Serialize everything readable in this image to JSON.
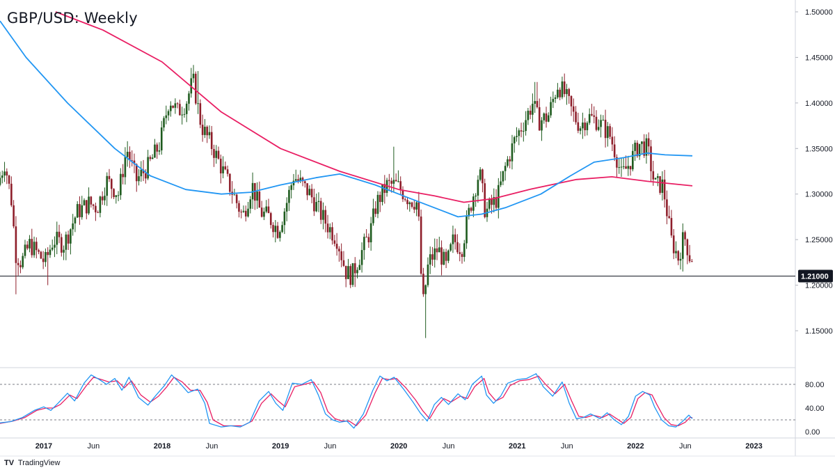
{
  "chart_data": {
    "type": "candlestick",
    "title": "GBP/USD: Weekly",
    "price_axis": {
      "ticks": [
        "1.15000",
        "1.20000",
        "1.25000",
        "1.30000",
        "1.35000",
        "1.40000",
        "1.45000",
        "1.50000"
      ],
      "range": [
        1.125,
        1.505
      ]
    },
    "time_axis": {
      "labels": [
        "2017",
        "Jun",
        "2018",
        "Jun",
        "2019",
        "Jun",
        "2020",
        "Jun",
        "2021",
        "Jun",
        "2022",
        "Jun",
        "2023"
      ],
      "label_dates": [
        2017.0,
        2017.42,
        2018.0,
        2018.42,
        2019.0,
        2019.42,
        2020.0,
        2020.42,
        2021.0,
        2021.42,
        2022.0,
        2022.42,
        2023.0
      ],
      "range": [
        2016.63,
        2023.35
      ]
    },
    "horizontal_line": {
      "value": 1.21,
      "label": "1.21000",
      "color": "#131722"
    },
    "candles": {
      "up_color": "#1e5b1e",
      "down_color": "#8e1e2a",
      "price_path": [
        [
          2016.63,
          1.31
        ],
        [
          2016.69,
          1.335
        ],
        [
          2016.75,
          1.29
        ],
        [
          2016.78,
          1.235
        ],
        [
          2016.83,
          1.225
        ],
        [
          2016.9,
          1.245
        ],
        [
          2017.03,
          1.225
        ],
        [
          2017.1,
          1.25
        ],
        [
          2017.19,
          1.245
        ],
        [
          2017.3,
          1.28
        ],
        [
          2017.4,
          1.29
        ],
        [
          2017.47,
          1.285
        ],
        [
          2017.55,
          1.315
        ],
        [
          2017.65,
          1.3
        ],
        [
          2017.72,
          1.35
        ],
        [
          2017.8,
          1.315
        ],
        [
          2017.9,
          1.33
        ],
        [
          2018.0,
          1.355
        ],
        [
          2018.08,
          1.405
        ],
        [
          2018.15,
          1.39
        ],
        [
          2018.22,
          1.4
        ],
        [
          2018.28,
          1.425
        ],
        [
          2018.35,
          1.375
        ],
        [
          2018.45,
          1.35
        ],
        [
          2018.55,
          1.32
        ],
        [
          2018.62,
          1.3
        ],
        [
          2018.7,
          1.275
        ],
        [
          2018.78,
          1.31
        ],
        [
          2018.85,
          1.28
        ],
        [
          2018.92,
          1.275
        ],
        [
          2019.0,
          1.26
        ],
        [
          2019.07,
          1.29
        ],
        [
          2019.13,
          1.32
        ],
        [
          2019.2,
          1.31
        ],
        [
          2019.27,
          1.3
        ],
        [
          2019.35,
          1.28
        ],
        [
          2019.42,
          1.265
        ],
        [
          2019.5,
          1.25
        ],
        [
          2019.57,
          1.215
        ],
        [
          2019.62,
          1.21
        ],
        [
          2019.7,
          1.235
        ],
        [
          2019.78,
          1.26
        ],
        [
          2019.83,
          1.29
        ],
        [
          2019.92,
          1.31
        ],
        [
          2020.0,
          1.31
        ],
        [
          2020.1,
          1.295
        ],
        [
          2020.18,
          1.29
        ],
        [
          2020.22,
          1.175
        ],
        [
          2020.27,
          1.225
        ],
        [
          2020.35,
          1.24
        ],
        [
          2020.42,
          1.22
        ],
        [
          2020.48,
          1.25
        ],
        [
          2020.55,
          1.24
        ],
        [
          2020.62,
          1.285
        ],
        [
          2020.7,
          1.325
        ],
        [
          2020.75,
          1.28
        ],
        [
          2020.85,
          1.295
        ],
        [
          2020.92,
          1.33
        ],
        [
          2021.0,
          1.36
        ],
        [
          2021.08,
          1.38
        ],
        [
          2021.15,
          1.4
        ],
        [
          2021.2,
          1.38
        ],
        [
          2021.28,
          1.385
        ],
        [
          2021.36,
          1.42
        ],
        [
          2021.42,
          1.41
        ],
        [
          2021.5,
          1.385
        ],
        [
          2021.55,
          1.375
        ],
        [
          2021.62,
          1.385
        ],
        [
          2021.7,
          1.38
        ],
        [
          2021.8,
          1.365
        ],
        [
          2021.85,
          1.345
        ],
        [
          2021.9,
          1.32
        ],
        [
          2021.95,
          1.33
        ],
        [
          2022.05,
          1.355
        ],
        [
          2022.12,
          1.35
        ],
        [
          2022.18,
          1.31
        ],
        [
          2022.25,
          1.31
        ],
        [
          2022.32,
          1.25
        ],
        [
          2022.38,
          1.23
        ],
        [
          2022.43,
          1.255
        ],
        [
          2022.48,
          1.23
        ]
      ],
      "extreme_wicks": [
        {
          "date": 2016.76,
          "low": 1.19
        },
        {
          "date": 2017.03,
          "low": 1.2
        },
        {
          "date": 2018.3,
          "high": 1.435
        },
        {
          "date": 2019.62,
          "low": 1.198
        },
        {
          "date": 2019.96,
          "high": 1.352
        },
        {
          "date": 2020.22,
          "low": 1.142
        },
        {
          "date": 2021.16,
          "high": 1.423
        },
        {
          "date": 2021.38,
          "high": 1.425
        },
        {
          "date": 2022.4,
          "low": 1.215
        }
      ]
    },
    "moving_averages": [
      {
        "color": "#e91e63",
        "points": [
          [
            2017.1,
            1.5
          ],
          [
            2017.5,
            1.48
          ],
          [
            2018.0,
            1.445
          ],
          [
            2018.5,
            1.39
          ],
          [
            2019.0,
            1.35
          ],
          [
            2019.5,
            1.325
          ],
          [
            2020.0,
            1.305
          ],
          [
            2020.3,
            1.298
          ],
          [
            2020.55,
            1.291
          ],
          [
            2020.8,
            1.295
          ],
          [
            2021.1,
            1.305
          ],
          [
            2021.5,
            1.316
          ],
          [
            2021.8,
            1.319
          ],
          [
            2022.1,
            1.314
          ],
          [
            2022.48,
            1.309
          ]
        ]
      },
      {
        "color": "#2196f3",
        "points": [
          [
            2016.63,
            1.49
          ],
          [
            2016.85,
            1.45
          ],
          [
            2017.2,
            1.4
          ],
          [
            2017.6,
            1.35
          ],
          [
            2017.9,
            1.32
          ],
          [
            2018.2,
            1.305
          ],
          [
            2018.5,
            1.3
          ],
          [
            2018.75,
            1.302
          ],
          [
            2019.0,
            1.31
          ],
          [
            2019.3,
            1.318
          ],
          [
            2019.5,
            1.322
          ],
          [
            2019.8,
            1.31
          ],
          [
            2020.1,
            1.295
          ],
          [
            2020.3,
            1.285
          ],
          [
            2020.5,
            1.275
          ],
          [
            2020.7,
            1.278
          ],
          [
            2020.9,
            1.285
          ],
          [
            2021.2,
            1.3
          ],
          [
            2021.45,
            1.32
          ],
          [
            2021.65,
            1.335
          ],
          [
            2021.9,
            1.34
          ],
          [
            2022.1,
            1.345
          ],
          [
            2022.25,
            1.343
          ],
          [
            2022.48,
            1.342
          ]
        ]
      }
    ],
    "oscillator": {
      "ticks": [
        "0.00",
        "40.00",
        "80.00"
      ],
      "range": [
        -5,
        105
      ],
      "levels": [
        20,
        80
      ],
      "k_color": "#2196f3",
      "d_color": "#e91e63",
      "k_points": [
        [
          2016.63,
          15
        ],
        [
          2016.72,
          17
        ],
        [
          2016.82,
          24
        ],
        [
          2016.92,
          36
        ],
        [
          2017.0,
          42
        ],
        [
          2017.06,
          36
        ],
        [
          2017.12,
          48
        ],
        [
          2017.2,
          65
        ],
        [
          2017.26,
          52
        ],
        [
          2017.34,
          82
        ],
        [
          2017.4,
          96
        ],
        [
          2017.47,
          88
        ],
        [
          2017.53,
          80
        ],
        [
          2017.6,
          90
        ],
        [
          2017.66,
          70
        ],
        [
          2017.72,
          92
        ],
        [
          2017.8,
          58
        ],
        [
          2017.88,
          45
        ],
        [
          2017.95,
          62
        ],
        [
          2018.02,
          78
        ],
        [
          2018.08,
          96
        ],
        [
          2018.15,
          82
        ],
        [
          2018.22,
          66
        ],
        [
          2018.3,
          72
        ],
        [
          2018.36,
          48
        ],
        [
          2018.4,
          14
        ],
        [
          2018.5,
          8
        ],
        [
          2018.58,
          10
        ],
        [
          2018.66,
          8
        ],
        [
          2018.74,
          16
        ],
        [
          2018.82,
          52
        ],
        [
          2018.9,
          68
        ],
        [
          2018.96,
          48
        ],
        [
          2019.02,
          36
        ],
        [
          2019.1,
          82
        ],
        [
          2019.18,
          80
        ],
        [
          2019.26,
          88
        ],
        [
          2019.32,
          62
        ],
        [
          2019.38,
          30
        ],
        [
          2019.44,
          20
        ],
        [
          2019.5,
          16
        ],
        [
          2019.56,
          18
        ],
        [
          2019.62,
          6
        ],
        [
          2019.7,
          30
        ],
        [
          2019.78,
          70
        ],
        [
          2019.84,
          94
        ],
        [
          2019.9,
          86
        ],
        [
          2019.96,
          92
        ],
        [
          2020.04,
          72
        ],
        [
          2020.12,
          50
        ],
        [
          2020.18,
          32
        ],
        [
          2020.24,
          18
        ],
        [
          2020.3,
          46
        ],
        [
          2020.36,
          58
        ],
        [
          2020.42,
          46
        ],
        [
          2020.5,
          64
        ],
        [
          2020.56,
          54
        ],
        [
          2020.62,
          80
        ],
        [
          2020.7,
          94
        ],
        [
          2020.74,
          62
        ],
        [
          2020.8,
          48
        ],
        [
          2020.86,
          60
        ],
        [
          2020.92,
          82
        ],
        [
          2021.0,
          88
        ],
        [
          2021.08,
          90
        ],
        [
          2021.16,
          98
        ],
        [
          2021.22,
          76
        ],
        [
          2021.3,
          60
        ],
        [
          2021.38,
          84
        ],
        [
          2021.44,
          48
        ],
        [
          2021.5,
          22
        ],
        [
          2021.56,
          24
        ],
        [
          2021.62,
          30
        ],
        [
          2021.7,
          22
        ],
        [
          2021.76,
          32
        ],
        [
          2021.82,
          20
        ],
        [
          2021.88,
          12
        ],
        [
          2021.94,
          26
        ],
        [
          2022.0,
          60
        ],
        [
          2022.06,
          68
        ],
        [
          2022.12,
          62
        ],
        [
          2022.16,
          42
        ],
        [
          2022.22,
          20
        ],
        [
          2022.28,
          10
        ],
        [
          2022.34,
          8
        ],
        [
          2022.4,
          18
        ],
        [
          2022.45,
          28
        ],
        [
          2022.48,
          22
        ]
      ],
      "d_points": [
        [
          2016.63,
          14
        ],
        [
          2016.74,
          18
        ],
        [
          2016.84,
          24
        ],
        [
          2016.94,
          36
        ],
        [
          2017.02,
          40
        ],
        [
          2017.08,
          40
        ],
        [
          2017.14,
          46
        ],
        [
          2017.22,
          62
        ],
        [
          2017.28,
          56
        ],
        [
          2017.36,
          78
        ],
        [
          2017.42,
          92
        ],
        [
          2017.49,
          88
        ],
        [
          2017.55,
          84
        ],
        [
          2017.62,
          86
        ],
        [
          2017.68,
          74
        ],
        [
          2017.74,
          86
        ],
        [
          2017.82,
          62
        ],
        [
          2017.9,
          50
        ],
        [
          2017.97,
          60
        ],
        [
          2018.04,
          76
        ],
        [
          2018.1,
          92
        ],
        [
          2018.17,
          84
        ],
        [
          2018.24,
          70
        ],
        [
          2018.32,
          70
        ],
        [
          2018.38,
          50
        ],
        [
          2018.43,
          20
        ],
        [
          2018.52,
          10
        ],
        [
          2018.6,
          10
        ],
        [
          2018.68,
          10
        ],
        [
          2018.76,
          18
        ],
        [
          2018.84,
          48
        ],
        [
          2018.92,
          64
        ],
        [
          2018.98,
          52
        ],
        [
          2019.04,
          42
        ],
        [
          2019.12,
          76
        ],
        [
          2019.2,
          80
        ],
        [
          2019.28,
          84
        ],
        [
          2019.34,
          66
        ],
        [
          2019.4,
          34
        ],
        [
          2019.46,
          22
        ],
        [
          2019.52,
          18
        ],
        [
          2019.58,
          18
        ],
        [
          2019.64,
          10
        ],
        [
          2019.72,
          28
        ],
        [
          2019.8,
          66
        ],
        [
          2019.86,
          90
        ],
        [
          2019.92,
          88
        ],
        [
          2019.98,
          90
        ],
        [
          2020.06,
          74
        ],
        [
          2020.14,
          54
        ],
        [
          2020.2,
          36
        ],
        [
          2020.26,
          22
        ],
        [
          2020.32,
          42
        ],
        [
          2020.38,
          56
        ],
        [
          2020.44,
          50
        ],
        [
          2020.52,
          60
        ],
        [
          2020.58,
          56
        ],
        [
          2020.64,
          76
        ],
        [
          2020.72,
          90
        ],
        [
          2020.76,
          66
        ],
        [
          2020.82,
          52
        ],
        [
          2020.88,
          58
        ],
        [
          2020.94,
          78
        ],
        [
          2021.02,
          86
        ],
        [
          2021.1,
          88
        ],
        [
          2021.18,
          94
        ],
        [
          2021.24,
          80
        ],
        [
          2021.32,
          64
        ],
        [
          2021.4,
          80
        ],
        [
          2021.46,
          52
        ],
        [
          2021.52,
          26
        ],
        [
          2021.58,
          24
        ],
        [
          2021.64,
          28
        ],
        [
          2021.72,
          24
        ],
        [
          2021.78,
          30
        ],
        [
          2021.84,
          22
        ],
        [
          2021.9,
          14
        ],
        [
          2021.96,
          24
        ],
        [
          2022.02,
          56
        ],
        [
          2022.08,
          66
        ],
        [
          2022.14,
          62
        ],
        [
          2022.18,
          46
        ],
        [
          2022.24,
          24
        ],
        [
          2022.3,
          12
        ],
        [
          2022.36,
          10
        ],
        [
          2022.42,
          16
        ],
        [
          2022.46,
          24
        ],
        [
          2022.48,
          24
        ]
      ]
    }
  },
  "branding": {
    "logo": "TV",
    "name": "TradingView"
  }
}
